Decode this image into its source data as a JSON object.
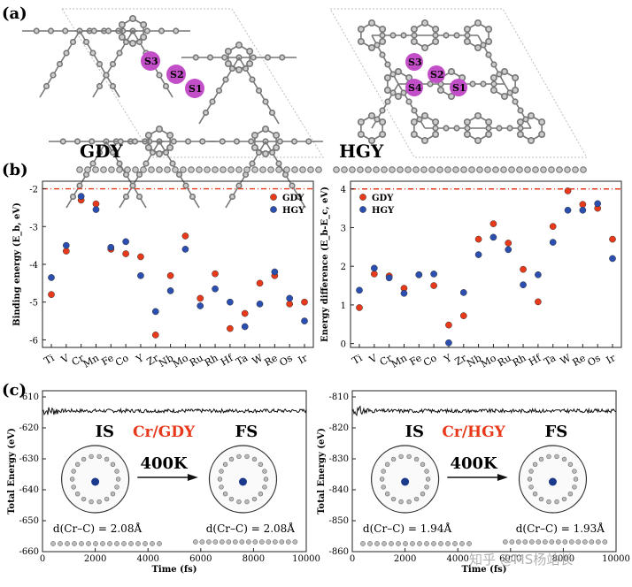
{
  "panels": {
    "a": "(a)",
    "b": "(b)",
    "c": "(c)"
  },
  "structures": {
    "left": {
      "name": "GDY",
      "sites": [
        "S3",
        "S2",
        "S1"
      ]
    },
    "right": {
      "name": "HGY",
      "sites": [
        "S3",
        "S2",
        "S4",
        "S1"
      ]
    }
  },
  "legend": {
    "gdy": "GDY",
    "hgy": "HGY"
  },
  "colors": {
    "gdy": "#e8391b",
    "hgy": "#2a4fb0",
    "refline": "#e8391b",
    "site": "#c24fc8"
  },
  "elements": [
    "Ti",
    "V",
    "Cr",
    "Mn",
    "Fe",
    "Co",
    "Y",
    "Zr",
    "Nb",
    "Mo",
    "Ru",
    "Rh",
    "Hf",
    "Ta",
    "W",
    "Re",
    "Os",
    "Ir"
  ],
  "chart_data": [
    {
      "type": "scatter",
      "ylabel": "Binding energy (E_b, eV)",
      "ylim": [
        -6.2,
        -1.8
      ],
      "yticks": [
        -6,
        -5,
        -4,
        -3,
        -2
      ],
      "reference_line": -2,
      "categories": [
        "Ti",
        "V",
        "Cr",
        "Mn",
        "Fe",
        "Co",
        "Y",
        "Zr",
        "Nb",
        "Mo",
        "Ru",
        "Rh",
        "Hf",
        "Ta",
        "W",
        "Re",
        "Os",
        "Ir"
      ],
      "series": [
        {
          "name": "GDY",
          "values": [
            -4.8,
            -3.65,
            -2.3,
            -2.4,
            -3.6,
            -3.72,
            -3.8,
            -5.87,
            -4.3,
            -3.25,
            -4.9,
            -4.25,
            -5.7,
            -5.3,
            -4.5,
            -4.3,
            -5.05,
            -5.0
          ]
        },
        {
          "name": "HGY",
          "values": [
            -4.35,
            -3.5,
            -2.2,
            -2.55,
            -3.55,
            -3.4,
            -4.3,
            -5.25,
            -4.7,
            -3.6,
            -5.1,
            -4.65,
            -5.0,
            -5.65,
            -5.05,
            -4.2,
            -4.9,
            -5.5
          ]
        }
      ],
      "grid": false,
      "legend_position": "top-right"
    },
    {
      "type": "scatter",
      "ylabel": "Energy difference (E_b-E_c, eV)",
      "ylim": [
        -0.1,
        4.2
      ],
      "yticks": [
        0,
        1,
        2,
        3,
        4
      ],
      "reference_line": 4,
      "categories": [
        "Ti",
        "V",
        "Cr",
        "Mn",
        "Fe",
        "Co",
        "Y",
        "Zr",
        "Nb",
        "Mo",
        "Ru",
        "Rh",
        "Hf",
        "Ta",
        "W",
        "Re",
        "Os",
        "Ir"
      ],
      "series": [
        {
          "name": "GDY",
          "values": [
            0.93,
            1.8,
            1.75,
            1.43,
            1.78,
            1.5,
            0.48,
            0.72,
            2.7,
            3.1,
            2.6,
            1.92,
            1.08,
            3.03,
            3.95,
            3.6,
            3.5,
            2.7
          ]
        },
        {
          "name": "HGY",
          "values": [
            1.38,
            1.95,
            1.7,
            1.3,
            1.78,
            1.8,
            0.02,
            1.32,
            2.3,
            2.75,
            2.43,
            1.52,
            1.78,
            2.62,
            3.45,
            3.45,
            3.62,
            2.2
          ]
        }
      ],
      "grid": false,
      "legend_position": "top-left"
    },
    {
      "type": "line",
      "title": "Cr/GDY",
      "xlabel": "Time (fs)",
      "ylabel": "Total Energy (eV)",
      "xlim": [
        0,
        10000
      ],
      "ylim": [
        -660,
        -608
      ],
      "xticks": [
        0,
        2000,
        4000,
        6000,
        8000,
        10000
      ],
      "yticks": [
        -610,
        -620,
        -630,
        -640,
        -650,
        -660
      ],
      "series": [
        {
          "name": "",
          "baseline": -614.5
        }
      ],
      "annotations": {
        "is": "IS",
        "fs": "FS",
        "temp": "400K",
        "d_is": "2.08Å",
        "d_fs": "2.08Å"
      }
    },
    {
      "type": "line",
      "title": "Cr/HGY",
      "xlabel": "Time (fs)",
      "ylabel": "Total Energy (eV)",
      "xlim": [
        0,
        10000
      ],
      "ylim": [
        -860,
        -808
      ],
      "xticks": [
        0,
        2000,
        4000,
        6000,
        8000,
        10000
      ],
      "yticks": [
        -810,
        -820,
        -830,
        -840,
        -850,
        -860
      ],
      "series": [
        {
          "name": "",
          "baseline": -814.5
        }
      ],
      "annotations": {
        "is": "IS",
        "fs": "FS",
        "temp": "400K",
        "d_is": "1.94Å",
        "d_fs": "1.93Å"
      }
    }
  ],
  "watermark": "知乎 @MS杨站长"
}
